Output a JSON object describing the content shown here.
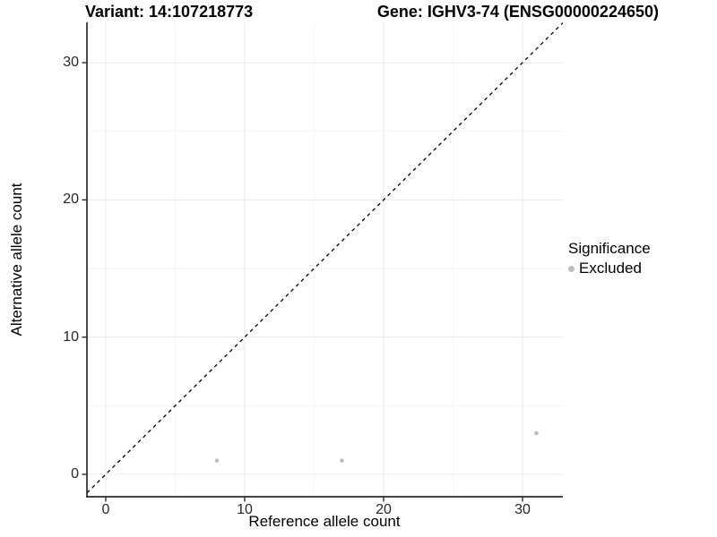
{
  "header": {
    "variant_title": "Variant: 14:107218773",
    "gene_title": "Gene: IGHV3-74 (ENSG00000224650)"
  },
  "chart_data": {
    "type": "scatter",
    "title": "Variant: 14:107218773 — Gene: IGHV3-74 (ENSG00000224650)",
    "xlabel": "Reference allele count",
    "ylabel": "Alternative allele count",
    "x_ticks": [
      0,
      10,
      20,
      30
    ],
    "y_ticks": [
      0,
      10,
      20,
      30
    ],
    "x_minor_ticks": [
      5,
      15,
      25
    ],
    "y_minor_ticks": [
      5,
      15,
      25
    ],
    "xlim": [
      -1.35,
      32.9
    ],
    "ylim": [
      -1.63,
      32.93
    ],
    "grid": "on",
    "legend": {
      "title": "Significance",
      "position": "right",
      "entries": [
        {
          "label": "Excluded",
          "color": "#bdbdbd"
        }
      ]
    },
    "series": [
      {
        "name": "Excluded",
        "color": "#bdbdbd",
        "points": [
          [
            8,
            1
          ],
          [
            17,
            1
          ],
          [
            31,
            3
          ]
        ]
      }
    ],
    "reference_line": {
      "kind": "identity y=x",
      "slope": 1,
      "intercept": 0,
      "style": "dashed",
      "color": "#000000"
    }
  },
  "colors": {
    "background": "#ffffff",
    "point": "#bdbdbd",
    "axis_line": "#2a2a2a",
    "grid_major": "#e8e8e8",
    "grid_minor": "#f4f4f4",
    "text": "#000000"
  }
}
